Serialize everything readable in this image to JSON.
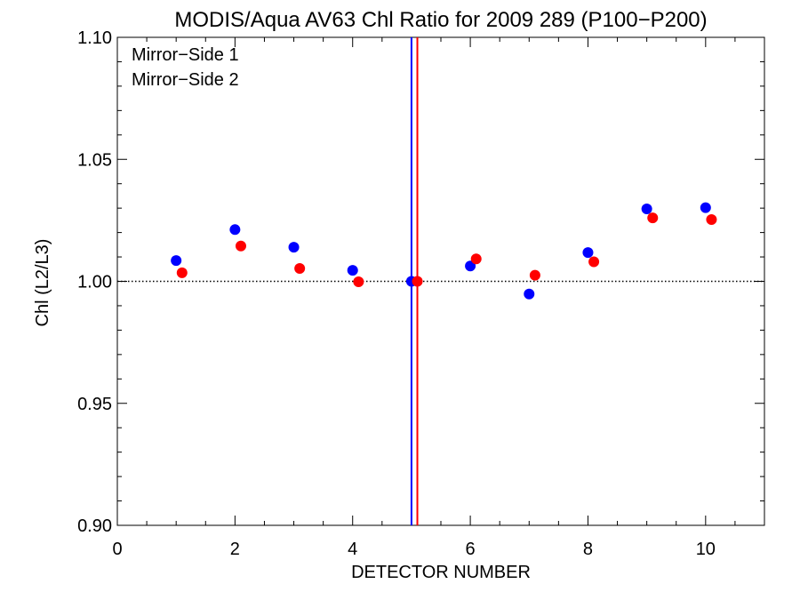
{
  "chart_data": {
    "type": "scatter",
    "title": "MODIS/Aqua AV63 Chl Ratio for 2009 289 (P100−P200)",
    "xlabel": "DETECTOR NUMBER",
    "ylabel": "Chl (L2/L3)",
    "xlim": [
      0,
      11
    ],
    "ylim": [
      0.9,
      1.1
    ],
    "x_ticks": [
      0,
      2,
      4,
      6,
      8,
      10
    ],
    "x_tick_labels": [
      "0",
      "2",
      "4",
      "6",
      "8",
      "10"
    ],
    "y_ticks": [
      0.9,
      0.95,
      1.0,
      1.05,
      1.1
    ],
    "y_tick_labels": [
      "0.90",
      "0.95",
      "1.00",
      "1.05",
      "1.10"
    ],
    "reference_line": {
      "y": 1.0,
      "style": "dotted",
      "color": "#000000"
    },
    "legend_position": "top-left",
    "series": [
      {
        "name": "Mirror−Side 1",
        "color": "#0000ff",
        "vline_x": 5.0,
        "x": [
          1,
          2,
          3,
          4,
          5,
          6,
          7,
          8,
          9,
          10
        ],
        "y": [
          1.0085,
          1.0212,
          1.014,
          1.0045,
          1.0,
          1.0063,
          0.9948,
          1.0118,
          1.0297,
          1.0302
        ]
      },
      {
        "name": "Mirror−Side 2",
        "color": "#ff0000",
        "vline_x": 5.1,
        "x": [
          1.1,
          2.1,
          3.1,
          4.1,
          5.1,
          6.1,
          7.1,
          8.1,
          9.1,
          10.1
        ],
        "y": [
          1.0035,
          1.0145,
          1.0053,
          0.9998,
          1.0,
          1.0092,
          1.0025,
          1.008,
          1.026,
          1.0253
        ]
      }
    ]
  }
}
